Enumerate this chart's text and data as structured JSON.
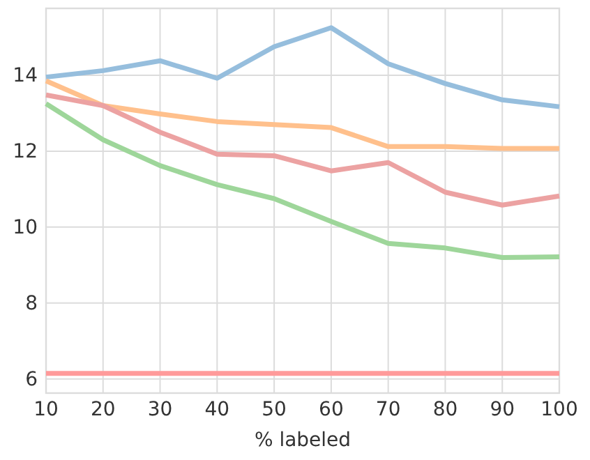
{
  "chart_data": {
    "type": "line",
    "xlabel": "% labeled",
    "x": [
      10,
      20,
      30,
      40,
      50,
      60,
      70,
      80,
      90,
      100
    ],
    "series": [
      {
        "color": "#96bedd",
        "values": [
          13.95,
          14.12,
          14.38,
          13.92,
          14.75,
          15.25,
          14.3,
          13.78,
          13.35,
          13.17
        ]
      },
      {
        "color": "#ffc08c",
        "values": [
          13.85,
          13.2,
          12.98,
          12.78,
          12.7,
          12.62,
          12.12,
          12.12,
          12.07,
          12.07
        ]
      },
      {
        "color": "#eca2a2",
        "values": [
          13.48,
          13.2,
          12.5,
          11.92,
          11.88,
          11.48,
          11.7,
          10.92,
          10.58,
          10.82
        ]
      },
      {
        "color": "#9ed69a",
        "values": [
          13.25,
          12.3,
          11.62,
          11.12,
          10.75,
          10.15,
          9.57,
          9.45,
          9.2,
          9.22
        ]
      },
      {
        "color": "#ff9a9a",
        "values": [
          6.15,
          6.15,
          6.15,
          6.15,
          6.15,
          6.15,
          6.15,
          6.15,
          6.15,
          6.15
        ]
      }
    ],
    "xlim": [
      10,
      100
    ],
    "xticks": [
      10,
      20,
      30,
      40,
      50,
      60,
      70,
      80,
      90,
      100
    ],
    "ylim": [
      5.63,
      15.76
    ],
    "yticks": [
      6,
      8,
      10,
      12,
      14
    ],
    "grid": true,
    "line_style": "solid",
    "marker": "none"
  }
}
